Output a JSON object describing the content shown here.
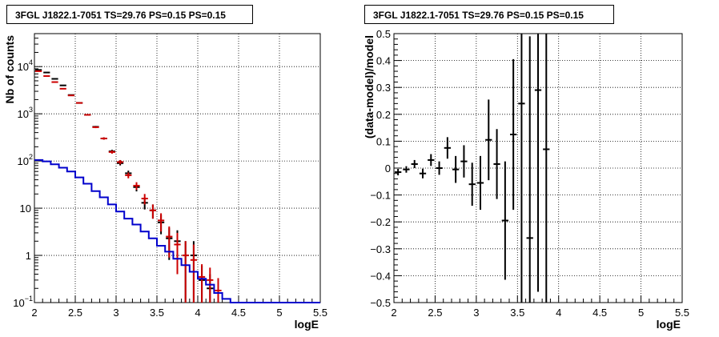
{
  "chart_data": [
    {
      "type": "scatter",
      "title": "3FGL J1822.1-7051 TS=29.76 PS=0.15 PS=0.15",
      "xlabel": "logE",
      "ylabel": "Nb of counts",
      "xlim": [
        2,
        5.5
      ],
      "ylim": [
        0.1,
        50000
      ],
      "yscale": "log",
      "grid": true,
      "xticks": [
        "2",
        "2.5",
        "3",
        "3.5",
        "4",
        "4.5",
        "5",
        "5.5"
      ],
      "yticks": [
        {
          "value": 0.1,
          "label": "10",
          "exp": "−1"
        },
        {
          "value": 1,
          "label": "1",
          "exp": ""
        },
        {
          "value": 10,
          "label": "10",
          "exp": ""
        },
        {
          "value": 100,
          "label": "10",
          "exp": "2"
        },
        {
          "value": 1000,
          "label": "10",
          "exp": "3"
        },
        {
          "value": 10000,
          "label": "10",
          "exp": "4"
        }
      ],
      "series": [
        {
          "kind": "points",
          "color": "#000000",
          "x": [
            2.05,
            2.15,
            2.25,
            2.35,
            2.45,
            2.55,
            2.65,
            2.75,
            2.85,
            2.95,
            3.05,
            3.15,
            3.25,
            3.35,
            3.45,
            3.55,
            3.65,
            3.75,
            3.85,
            3.95,
            4.05,
            4.15
          ],
          "y": [
            8500,
            7500,
            5500,
            4000,
            2500,
            1700,
            950,
            530,
            300,
            160,
            90,
            55,
            28,
            13,
            9,
            5,
            2.3,
            2,
            1,
            1,
            0.3,
            0.2
          ],
          "yerr": [
            90,
            85,
            75,
            63,
            50,
            41,
            31,
            23,
            17,
            13,
            9.5,
            7.4,
            5.3,
            3.6,
            3,
            2.2,
            1.5,
            1.4,
            1,
            1,
            0.3,
            0.2
          ]
        },
        {
          "kind": "points",
          "color": "#cc0000",
          "x": [
            2.05,
            2.15,
            2.25,
            2.35,
            2.45,
            2.55,
            2.65,
            2.75,
            2.85,
            2.95,
            3.05,
            3.15,
            3.25,
            3.35,
            3.45,
            3.55,
            3.65,
            3.75,
            3.85,
            3.95,
            4.05,
            4.15,
            4.25
          ],
          "y": [
            8000,
            6300,
            4700,
            3400,
            2450,
            1700,
            950,
            520,
            300,
            155,
            95,
            50,
            30,
            16,
            9,
            5.5,
            2.5,
            1.7,
            1,
            0.8,
            0.35,
            0.3,
            0.18
          ],
          "yerr": [
            89,
            79,
            69,
            58,
            50,
            41,
            31,
            23,
            17,
            12,
            9.7,
            7,
            5.5,
            4,
            3,
            2.3,
            1.6,
            1.3,
            1,
            0.9,
            0.3,
            0.25,
            0.15
          ]
        },
        {
          "kind": "step",
          "color": "#0000cc",
          "x": [
            2,
            2.1,
            2.2,
            2.3,
            2.4,
            2.5,
            2.6,
            2.7,
            2.8,
            2.9,
            3.0,
            3.1,
            3.2,
            3.3,
            3.4,
            3.5,
            3.6,
            3.7,
            3.8,
            3.9,
            4.0,
            4.1,
            4.2,
            4.3,
            4.4,
            4.5,
            4.6,
            4.7,
            4.8,
            4.9,
            5.0,
            5.1,
            5.2,
            5.3,
            5.4
          ],
          "y": [
            105,
            98,
            85,
            72,
            60,
            45,
            33,
            23,
            17,
            12,
            8.5,
            6,
            4.5,
            3.2,
            2.3,
            1.6,
            1.2,
            0.85,
            0.62,
            0.45,
            0.32,
            0.24,
            0.16,
            0.12,
            0.1,
            0.1,
            0.1,
            0.1,
            0.1,
            0.1,
            0.1,
            0.1,
            0.1,
            0.1,
            0.1
          ]
        }
      ]
    },
    {
      "type": "scatter",
      "title": "3FGL J1822.1-7051 TS=29.76 PS=0.15 PS=0.15",
      "xlabel": "logE",
      "ylabel": "(data-model)/model",
      "xlim": [
        2,
        5.5
      ],
      "ylim": [
        -0.5,
        0.5
      ],
      "grid": true,
      "xticks": [
        "2",
        "2.5",
        "3",
        "3.5",
        "4",
        "4.5",
        "5",
        "5.5"
      ],
      "yticks": [
        "−0.5",
        "−0.4",
        "−0.3",
        "−0.2",
        "−0.1",
        "0",
        "0.1",
        "0.2",
        "0.3",
        "0.4",
        "0.5"
      ],
      "series": [
        {
          "kind": "points",
          "color": "#000000",
          "x": [
            2.05,
            2.15,
            2.25,
            2.35,
            2.45,
            2.55,
            2.65,
            2.75,
            2.85,
            2.95,
            3.05,
            3.15,
            3.25,
            3.35,
            3.45,
            3.55,
            3.65,
            3.75,
            3.85
          ],
          "y": [
            -0.015,
            -0.005,
            0.015,
            -0.02,
            0.03,
            0.0,
            0.075,
            -0.005,
            0.025,
            -0.06,
            -0.055,
            0.105,
            0.015,
            -0.195,
            0.125,
            0.24,
            -0.26,
            0.29,
            0.07
          ],
          "yerr": [
            0.012,
            0.012,
            0.015,
            0.018,
            0.022,
            0.025,
            0.04,
            0.05,
            0.06,
            0.08,
            0.1,
            0.15,
            0.13,
            0.22,
            0.28,
            0.75,
            0.75,
            0.75,
            0.75
          ]
        }
      ]
    }
  ]
}
